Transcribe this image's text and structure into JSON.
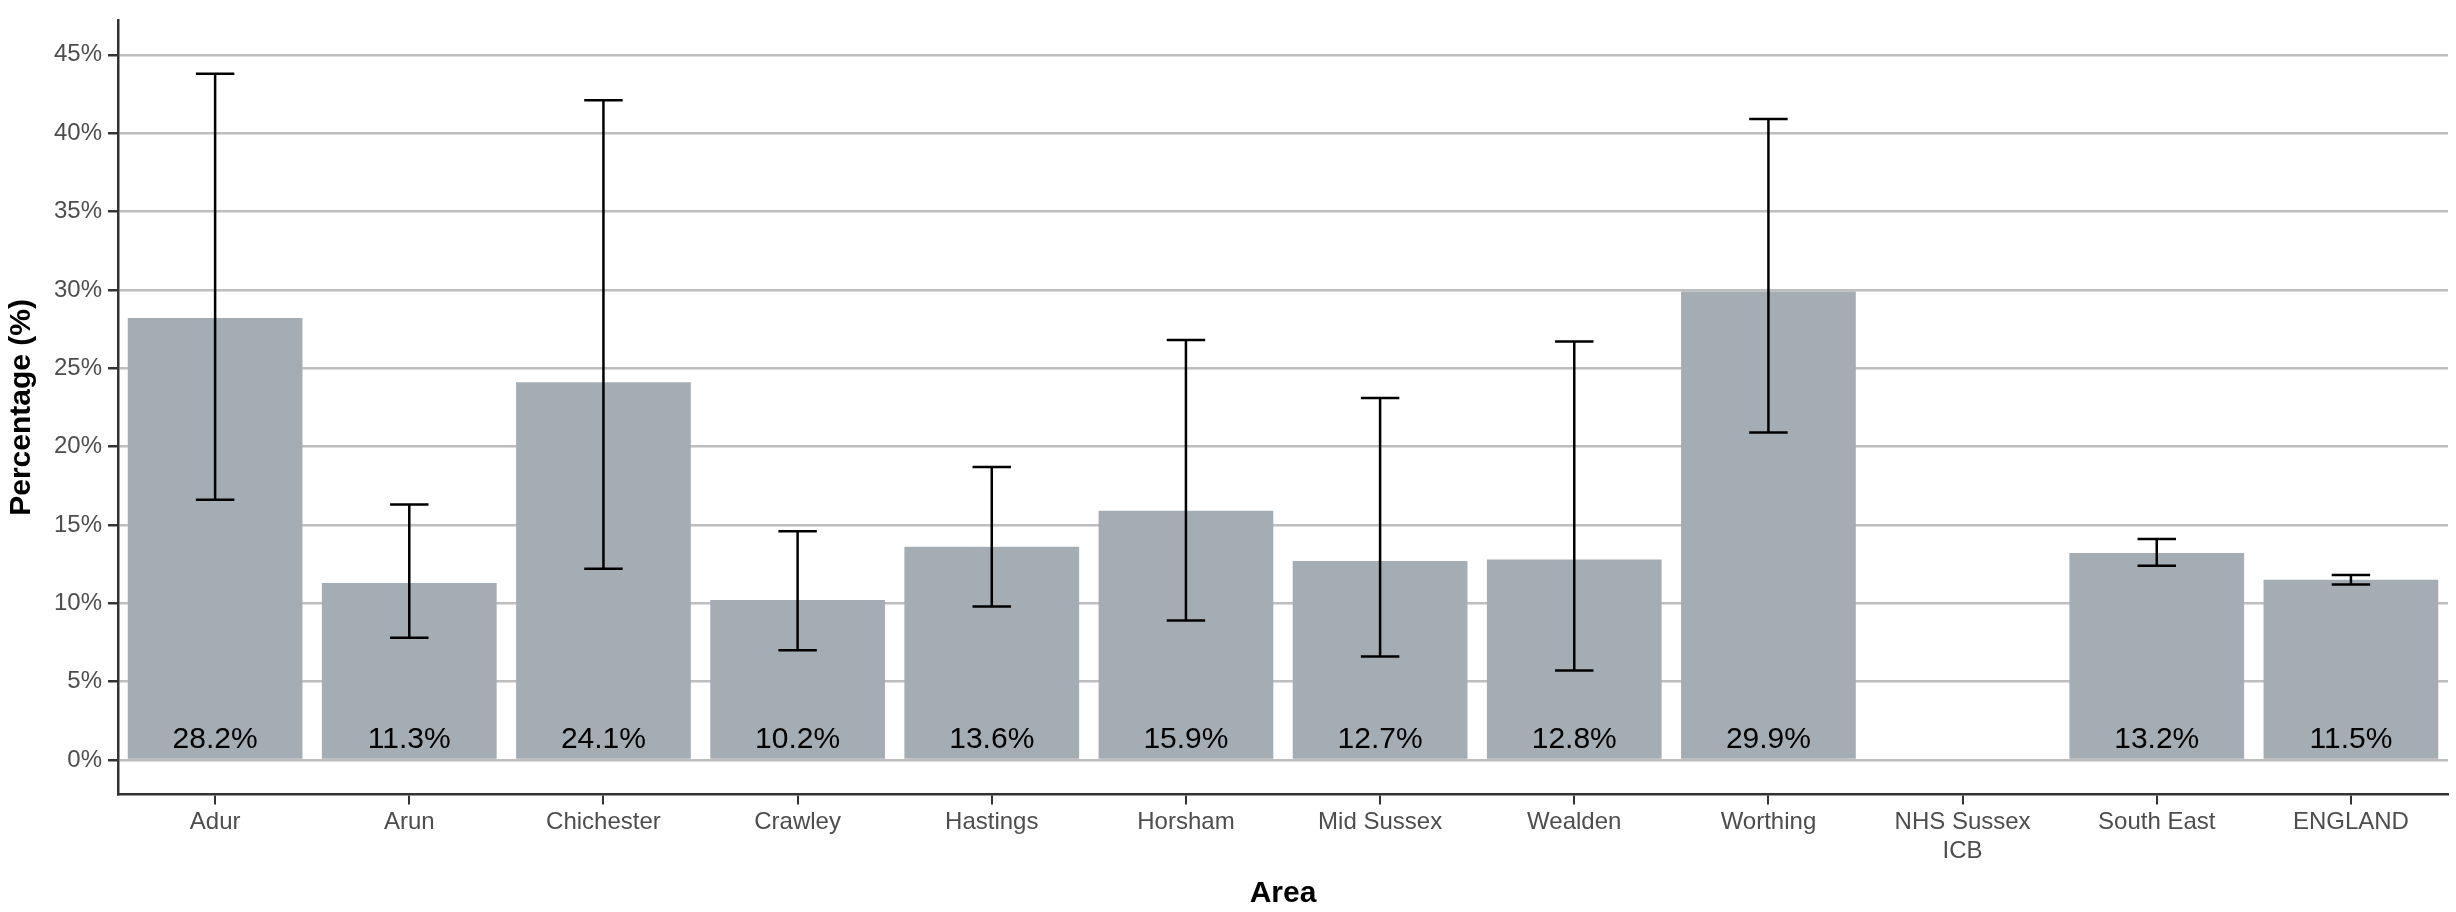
{
  "chart_data": {
    "type": "bar",
    "xlabel": "Area",
    "ylabel": "Percentage (%)",
    "categories": [
      "Adur",
      "Arun",
      "Chichester",
      "Crawley",
      "Hastings",
      "Horsham",
      "Mid Sussex",
      "Wealden",
      "Worthing",
      "NHS Sussex ICB",
      "South East",
      "ENGLAND"
    ],
    "values": [
      28.2,
      11.3,
      24.1,
      10.2,
      13.6,
      15.9,
      12.7,
      12.8,
      29.9,
      null,
      13.2,
      11.5
    ],
    "color": "#a5adb4",
    "errors": [
      [
        16.6,
        43.8
      ],
      [
        7.8,
        16.3
      ],
      [
        12.2,
        42.1
      ],
      [
        7.0,
        14.6
      ],
      [
        9.8,
        18.7
      ],
      [
        8.9,
        26.8
      ],
      [
        6.6,
        23.1
      ],
      [
        5.7,
        26.7
      ],
      [
        20.9,
        40.9
      ],
      null,
      [
        12.4,
        14.1
      ],
      [
        11.2,
        11.8
      ]
    ],
    "value_labels": [
      "28.2%",
      "11.3%",
      "24.1%",
      "10.2%",
      "13.6%",
      "15.9%",
      "12.7%",
      "12.8%",
      "29.9%",
      null,
      "13.2%",
      "11.5%"
    ],
    "ylim": [
      -2.2,
      47.2
    ],
    "yticks": [
      {
        "value": 0,
        "label": "0%"
      },
      {
        "value": 5,
        "label": "5%"
      },
      {
        "value": 10,
        "label": "10%"
      },
      {
        "value": 15,
        "label": "15%"
      },
      {
        "value": 20,
        "label": "20%"
      },
      {
        "value": 25,
        "label": "25%"
      },
      {
        "value": 30,
        "label": "30%"
      },
      {
        "value": 35,
        "label": "35%"
      },
      {
        "value": 40,
        "label": "40%"
      },
      {
        "value": 45,
        "label": "45%"
      }
    ],
    "grid": "y"
  }
}
